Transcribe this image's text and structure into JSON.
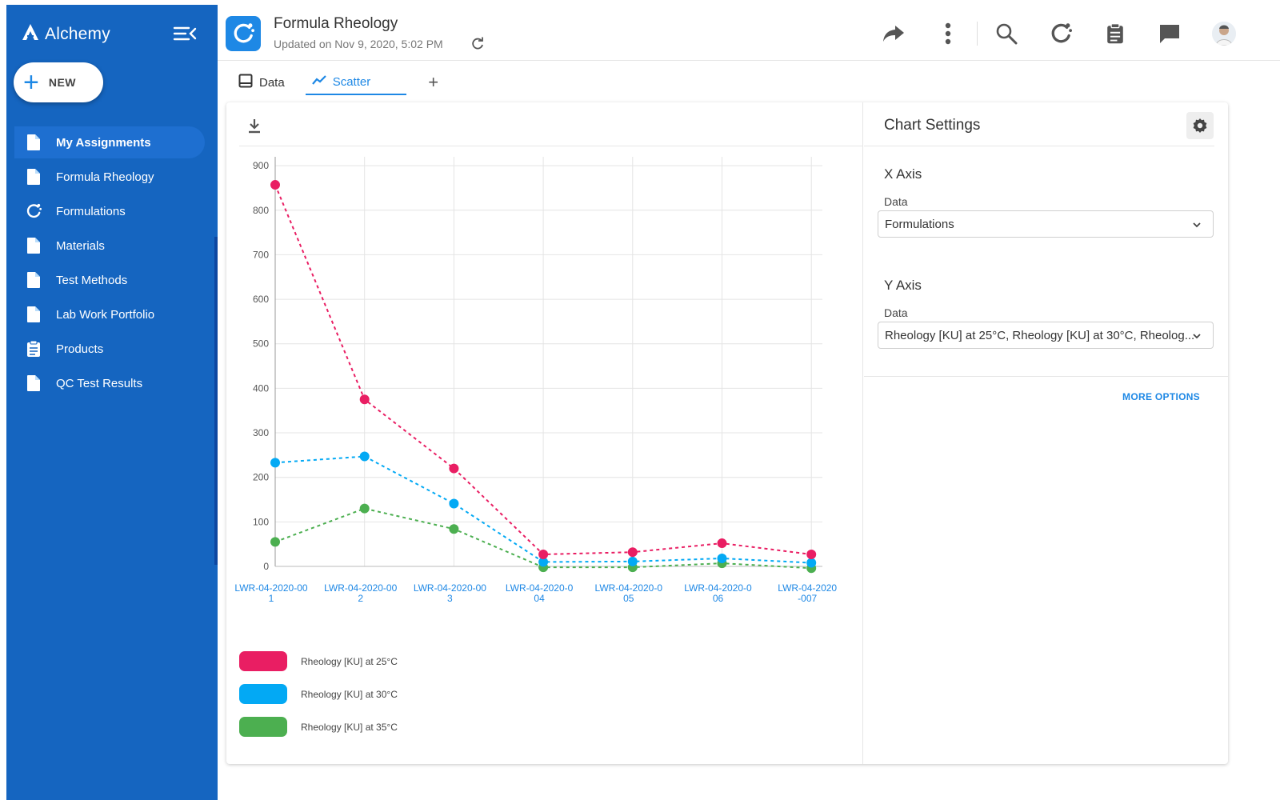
{
  "sidebar": {
    "brand": "Alchemy",
    "new_label": "NEW",
    "items": [
      {
        "label": "My Assignments",
        "icon": "document-icon",
        "active": true
      },
      {
        "label": "Formula Rheology",
        "icon": "document-icon"
      },
      {
        "label": "Formulations",
        "icon": "formulation-icon"
      },
      {
        "label": "Materials",
        "icon": "document-icon"
      },
      {
        "label": "Test Methods",
        "icon": "document-icon"
      },
      {
        "label": "Lab Work Portfolio",
        "icon": "document-icon"
      },
      {
        "label": "Products",
        "icon": "clipboard-icon"
      },
      {
        "label": "QC Test Results",
        "icon": "document-icon"
      }
    ]
  },
  "header": {
    "title": "Formula Rheology",
    "subtitle": "Updated on Nov 9, 2020, 5:02 PM"
  },
  "tabs": [
    {
      "label": "Data",
      "icon": "table-icon"
    },
    {
      "label": "Scatter",
      "icon": "line-chart-icon",
      "active": true
    }
  ],
  "settings": {
    "title": "Chart Settings",
    "x_axis": {
      "heading": "X Axis",
      "label": "Data",
      "value": "Formulations"
    },
    "y_axis": {
      "heading": "Y Axis",
      "label": "Data",
      "value": "Rheology [KU] at 25°C, Rheology [KU] at 30°C, Rheolog..."
    },
    "more_options": "MORE OPTIONS"
  },
  "colors": {
    "brand_blue": "#1565c0",
    "accent": "#1e88e5",
    "series_25": "#e91e63",
    "series_30": "#03a9f4",
    "series_35": "#4caf50"
  },
  "chart_data": {
    "type": "line",
    "categories": [
      [
        "LWR-04-2020-00",
        "1"
      ],
      [
        "LWR-04-2020-00",
        "2"
      ],
      [
        "LWR-04-2020-00",
        "3"
      ],
      [
        "LWR-04-2020-0",
        "04"
      ],
      [
        "LWR-04-2020-0",
        "05"
      ],
      [
        "LWR-04-2020-0",
        "06"
      ],
      [
        "LWR-04-2020",
        "-007"
      ]
    ],
    "yticks": [
      0,
      100,
      200,
      300,
      400,
      500,
      600,
      700,
      800,
      900
    ],
    "ylim": [
      0,
      920
    ],
    "grid": true,
    "line_style": "dashed",
    "series": [
      {
        "name": "Rheology [KU] at 25°C",
        "color": "#e91e63",
        "values": [
          857,
          375,
          220,
          27,
          32,
          52,
          27
        ]
      },
      {
        "name": "Rheology [KU] at 30°C",
        "color": "#03a9f4",
        "values": [
          233,
          247,
          141,
          10,
          11,
          18,
          8
        ]
      },
      {
        "name": "Rheology [KU] at 35°C",
        "color": "#4caf50",
        "values": [
          55,
          130,
          84,
          -2,
          -2,
          7,
          -4
        ]
      }
    ]
  }
}
